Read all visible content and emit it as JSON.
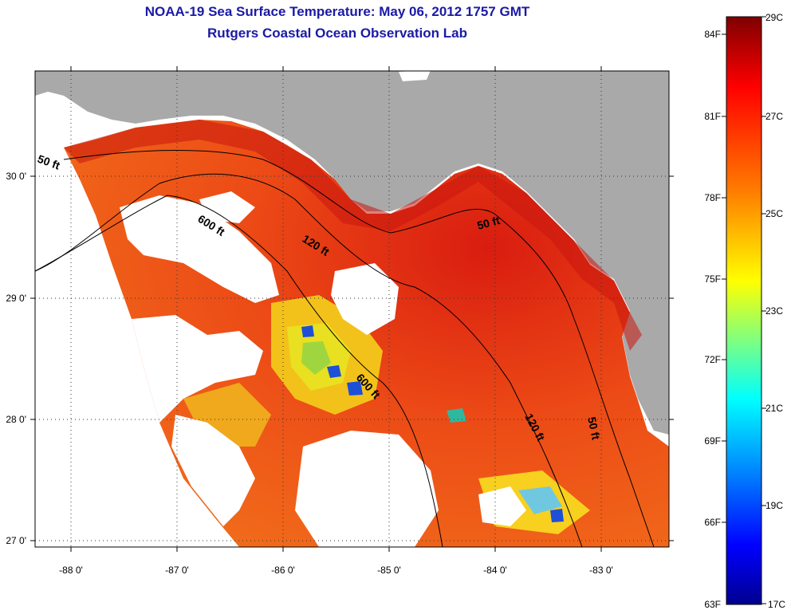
{
  "header": {
    "title": "NOAA-19 Sea Surface Temperature:  May 06, 2012 1757 GMT",
    "subtitle": "Rutgers Coastal Ocean Observation Lab"
  },
  "map": {
    "lon_ticks": [
      "-88 0'",
      "-87 0'",
      "-86 0'",
      "-85 0'",
      "-84 0'",
      "-83 0'"
    ],
    "lat_ticks": [
      "30 0'",
      "29 0'",
      "28 0'",
      "27 0'"
    ],
    "contours": [
      {
        "label": "50 ft"
      },
      {
        "label": "120 ft"
      },
      {
        "label": "600 ft"
      },
      {
        "label": "50 ft"
      },
      {
        "label": "600 ft"
      },
      {
        "label": "120 ft"
      },
      {
        "label": "50 ft"
      }
    ],
    "colors": {
      "land": "#a9a9a9",
      "cloud": "#ffffff",
      "warm": "#e8401a",
      "hot": "#b01010"
    }
  },
  "colorbar": {
    "celsius_labels": [
      "29C",
      "27C",
      "25C",
      "23C",
      "21C",
      "19C",
      "17C"
    ],
    "fahrenheit_labels": [
      "84F",
      "81F",
      "78F",
      "75F",
      "72F",
      "69F",
      "66F",
      "63F"
    ],
    "gradient_colors": [
      "#7f0000",
      "#ff0000",
      "#ff7f00",
      "#ffff00",
      "#7fff7f",
      "#00ffff",
      "#007fff",
      "#0000ff",
      "#00008f"
    ]
  }
}
